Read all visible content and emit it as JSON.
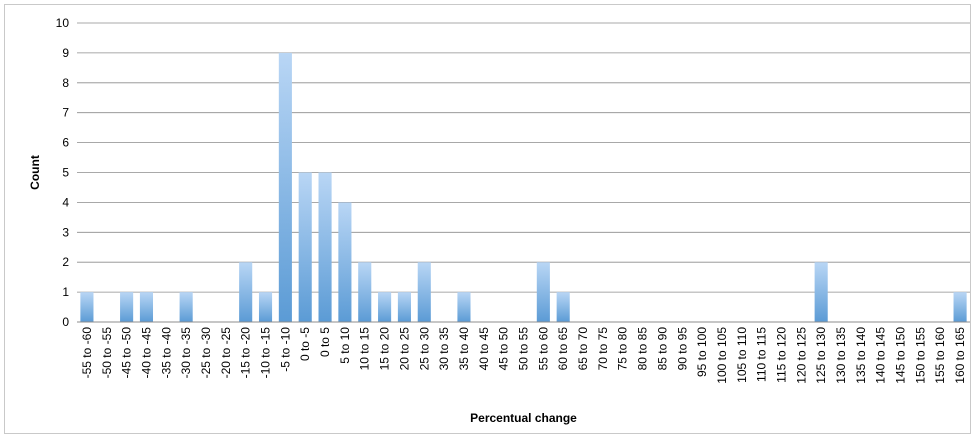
{
  "chart_data": {
    "type": "bar",
    "title": "",
    "xlabel": "Percentual change",
    "ylabel": "Count",
    "ylim": [
      0,
      10
    ],
    "yticks": [
      "0",
      "1",
      "2",
      "3",
      "4",
      "5",
      "6",
      "7",
      "8",
      "9",
      "10"
    ],
    "grid": true,
    "legend": "none",
    "bar_color": "#5b9bd5",
    "categories": [
      "-55 to -60",
      "-50 to -55",
      "-45 to -50",
      "-40 to -45",
      "-35 to -40",
      "-30 to -35",
      "-25 to -30",
      "-20 to -25",
      "-15 to -20",
      "-10 to -15",
      "-5 to -10",
      "0 to -5",
      "0 to 5",
      "5 to 10",
      "10 to 15",
      "15 to 20",
      "20 to 25",
      "25 to 30",
      "30 to 35",
      "35 to 40",
      "40 to 45",
      "45 to 50",
      "50 to 55",
      "55 to 60",
      "60 to 65",
      "65 to 70",
      "70 to 75",
      "75 to 80",
      "80 to 85",
      "85 to 90",
      "90 to 95",
      "95 to 100",
      "100 to 105",
      "105 to 110",
      "110 to 115",
      "115 to 120",
      "120 to 125",
      "125 to 130",
      "130 to 135",
      "135 to 140",
      "140 to 145",
      "145 to 150",
      "150 to 155",
      "155 to 160",
      "160 to 165"
    ],
    "values": [
      1,
      0,
      1,
      1,
      0,
      1,
      0,
      0,
      2,
      1,
      9,
      5,
      5,
      4,
      2,
      1,
      1,
      2,
      0,
      1,
      0,
      0,
      0,
      2,
      1,
      0,
      0,
      0,
      0,
      0,
      0,
      0,
      0,
      0,
      0,
      0,
      0,
      2,
      0,
      0,
      0,
      0,
      0,
      0,
      1
    ]
  }
}
